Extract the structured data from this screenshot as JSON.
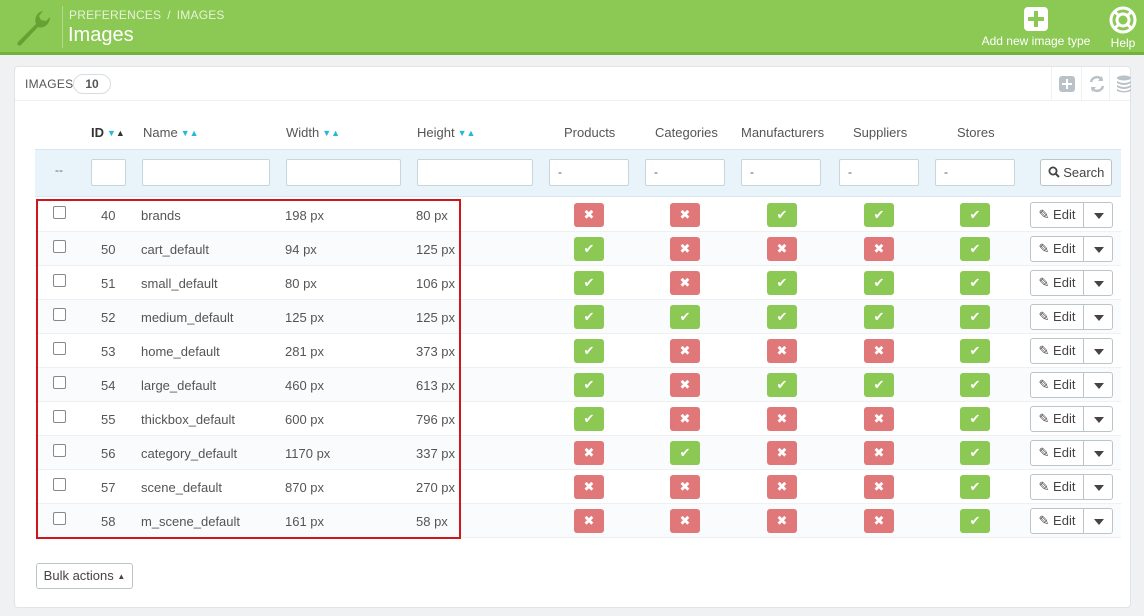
{
  "header": {
    "breadcrumb": [
      "PREFERENCES",
      "IMAGES"
    ],
    "breadcrumb_separator": "/",
    "title": "Images",
    "add_label": "Add new image type",
    "help_label": "Help",
    "bg_color": "#8bc954"
  },
  "panel": {
    "title": "IMAGES",
    "count": "10"
  },
  "columns": {
    "id": "ID",
    "name": "Name",
    "width": "Width",
    "height": "Height",
    "products": "Products",
    "categories": "Categories",
    "manufacturers": "Manufacturers",
    "suppliers": "Suppliers",
    "stores": "Stores"
  },
  "filters": {
    "dash": "--",
    "select_placeholder": "-",
    "search_label": "Search"
  },
  "rows": [
    {
      "id": "40",
      "name": "brands",
      "width": "198 px",
      "height": "80 px",
      "products": false,
      "categories": false,
      "manufacturers": true,
      "suppliers": true,
      "stores": true
    },
    {
      "id": "50",
      "name": "cart_default",
      "width": "94 px",
      "height": "125 px",
      "products": true,
      "categories": false,
      "manufacturers": false,
      "suppliers": false,
      "stores": true
    },
    {
      "id": "51",
      "name": "small_default",
      "width": "80 px",
      "height": "106 px",
      "products": true,
      "categories": false,
      "manufacturers": true,
      "suppliers": true,
      "stores": true
    },
    {
      "id": "52",
      "name": "medium_default",
      "width": "125 px",
      "height": "125 px",
      "products": true,
      "categories": true,
      "manufacturers": true,
      "suppliers": true,
      "stores": true
    },
    {
      "id": "53",
      "name": "home_default",
      "width": "281 px",
      "height": "373 px",
      "products": true,
      "categories": false,
      "manufacturers": false,
      "suppliers": false,
      "stores": true
    },
    {
      "id": "54",
      "name": "large_default",
      "width": "460 px",
      "height": "613 px",
      "products": true,
      "categories": false,
      "manufacturers": true,
      "suppliers": true,
      "stores": true
    },
    {
      "id": "55",
      "name": "thickbox_default",
      "width": "600 px",
      "height": "796 px",
      "products": true,
      "categories": false,
      "manufacturers": false,
      "suppliers": false,
      "stores": true
    },
    {
      "id": "56",
      "name": "category_default",
      "width": "1170 px",
      "height": "337 px",
      "products": false,
      "categories": true,
      "manufacturers": false,
      "suppliers": false,
      "stores": true
    },
    {
      "id": "57",
      "name": "scene_default",
      "width": "870 px",
      "height": "270 px",
      "products": false,
      "categories": false,
      "manufacturers": false,
      "suppliers": false,
      "stores": true
    },
    {
      "id": "58",
      "name": "m_scene_default",
      "width": "161 px",
      "height": "58 px",
      "products": false,
      "categories": false,
      "manufacturers": false,
      "suppliers": false,
      "stores": true
    }
  ],
  "row_actions": {
    "edit_label": "Edit"
  },
  "footer": {
    "bulk_label": "Bulk actions"
  },
  "colors": {
    "enabled": "#8bc954",
    "disabled": "#e0787a",
    "sort_arrow": "#25b9d7",
    "highlight": "#d0161d"
  }
}
